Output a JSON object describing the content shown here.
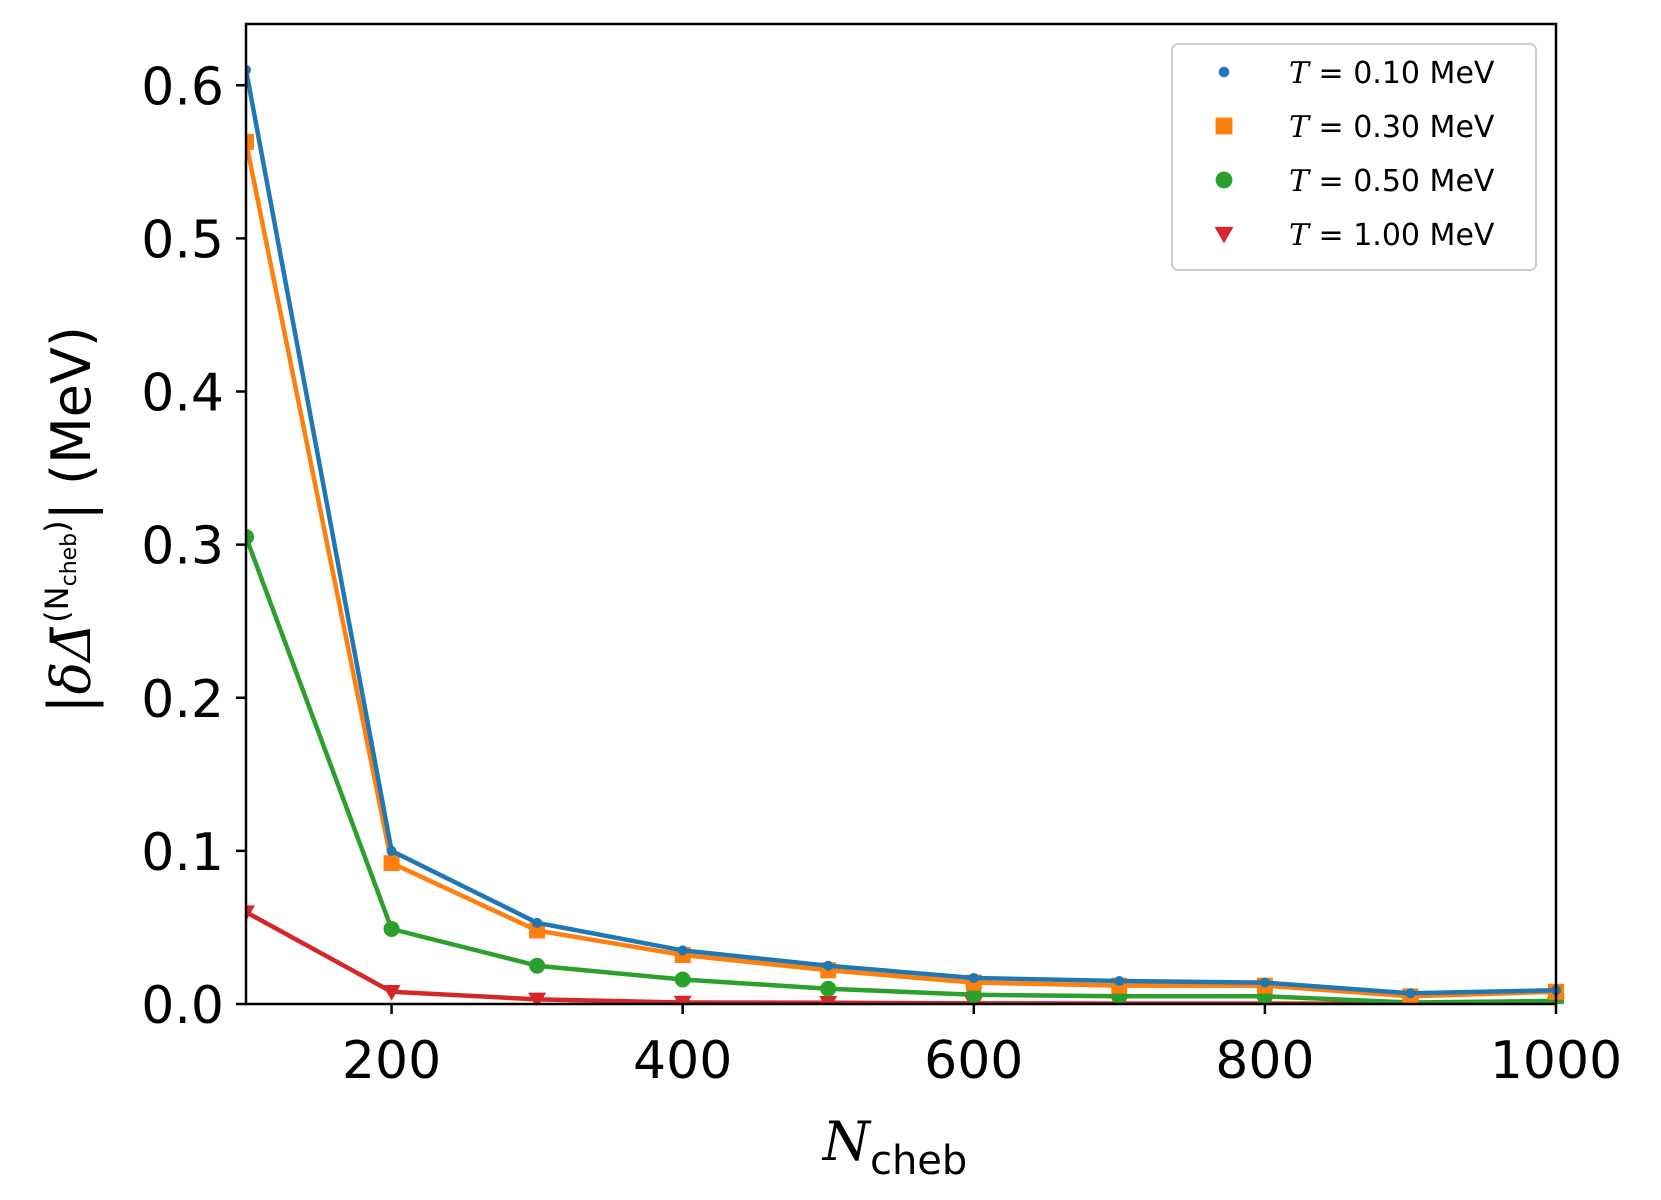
{
  "chart_data": {
    "type": "line",
    "title": "",
    "xlabel": "N_cheb",
    "ylabel": "|δΔ̄^(N_cheb)| (MeV)",
    "xlim": [
      100,
      1000
    ],
    "ylim": [
      0.0,
      0.64
    ],
    "x_ticks": [
      200,
      400,
      600,
      800,
      1000
    ],
    "x_tick_labels": [
      "200",
      "400",
      "600",
      "800",
      "1000"
    ],
    "y_ticks": [
      0.0,
      0.1,
      0.2,
      0.3,
      0.4,
      0.5,
      0.6
    ],
    "y_tick_labels": [
      "0.0",
      "0.1",
      "0.2",
      "0.3",
      "0.4",
      "0.5",
      "0.6"
    ],
    "grid": false,
    "legend_position": "top-right",
    "x": [
      100,
      200,
      300,
      400,
      500,
      600,
      700,
      800,
      900,
      1000
    ],
    "series": [
      {
        "name": "T = 0.10 MeV",
        "color": "#1f77b4",
        "marker": "point",
        "values": [
          0.61,
          0.1,
          0.053,
          0.035,
          0.025,
          0.017,
          0.015,
          0.014,
          0.007,
          0.009
        ]
      },
      {
        "name": "T = 0.30 MeV",
        "color": "#ff7f0e",
        "marker": "square",
        "values": [
          0.563,
          0.092,
          0.048,
          0.032,
          0.022,
          0.014,
          0.012,
          0.012,
          0.005,
          0.008
        ]
      },
      {
        "name": "T = 0.50 MeV",
        "color": "#2ca02c",
        "marker": "circle",
        "values": [
          0.305,
          0.049,
          0.025,
          0.016,
          0.01,
          0.006,
          0.005,
          0.005,
          0.001,
          0.002
        ]
      },
      {
        "name": "T = 1.00 MeV",
        "color": "#d62728",
        "marker": "triangle-down",
        "values": [
          0.06,
          0.008,
          0.003,
          0.001,
          0.0008,
          0.0004,
          0.0003,
          0.0003,
          0.0001,
          0.0001
        ]
      }
    ]
  },
  "labels": {
    "xlabel_main": "N",
    "xlabel_sub": "cheb",
    "ylabel_prefix": "|",
    "ylabel_delta": "δΔ̄",
    "ylabel_sup_N": "(N",
    "ylabel_sup_sub": "cheb",
    "ylabel_sup_close": ")",
    "ylabel_suffix": "| (MeV)",
    "legend": [
      {
        "sym": "T",
        "rest": " = 0.10 MeV"
      },
      {
        "sym": "T",
        "rest": " = 0.30 MeV"
      },
      {
        "sym": "T",
        "rest": " = 0.50 MeV"
      },
      {
        "sym": "T",
        "rest": " = 1.00 MeV"
      }
    ]
  }
}
